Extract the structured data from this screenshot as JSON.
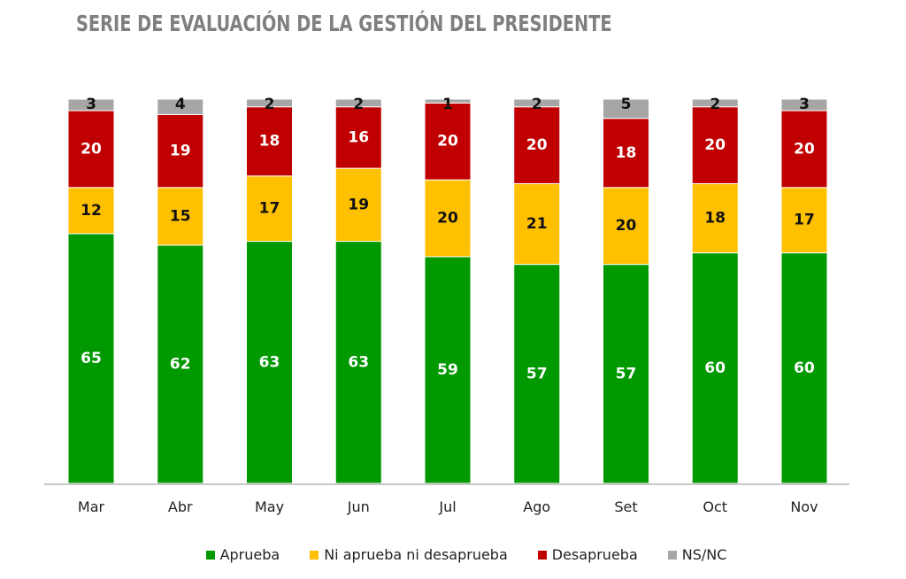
{
  "chart_data": {
    "type": "bar",
    "stacked": true,
    "title": "SERIE DE EVALUACIÓN DE LA GESTIÓN DEL PRESIDENTE",
    "xlabel": "",
    "ylabel": "",
    "ylim": [
      0,
      100
    ],
    "grid": false,
    "legend_position": "bottom",
    "categories": [
      "Mar",
      "Abr",
      "May",
      "Jun",
      "Jul",
      "Ago",
      "Set",
      "Oct",
      "Nov"
    ],
    "series": [
      {
        "name": "Aprueba",
        "color": "#009900",
        "label_color": "#ffffff",
        "values": [
          65,
          62,
          63,
          63,
          59,
          57,
          57,
          60,
          60
        ]
      },
      {
        "name": "Ni aprueba ni desaprueba",
        "color": "#ffc000",
        "label_color": "#111111",
        "values": [
          12,
          15,
          17,
          19,
          20,
          21,
          20,
          18,
          17
        ]
      },
      {
        "name": "Desaprueba",
        "color": "#c00000",
        "label_color": "#ffffff",
        "values": [
          20,
          19,
          18,
          16,
          20,
          20,
          18,
          20,
          20
        ]
      },
      {
        "name": "NS/NC",
        "color": "#a6a6a6",
        "label_color": "#111111",
        "values": [
          3,
          4,
          2,
          2,
          1,
          2,
          5,
          2,
          3
        ]
      }
    ]
  }
}
